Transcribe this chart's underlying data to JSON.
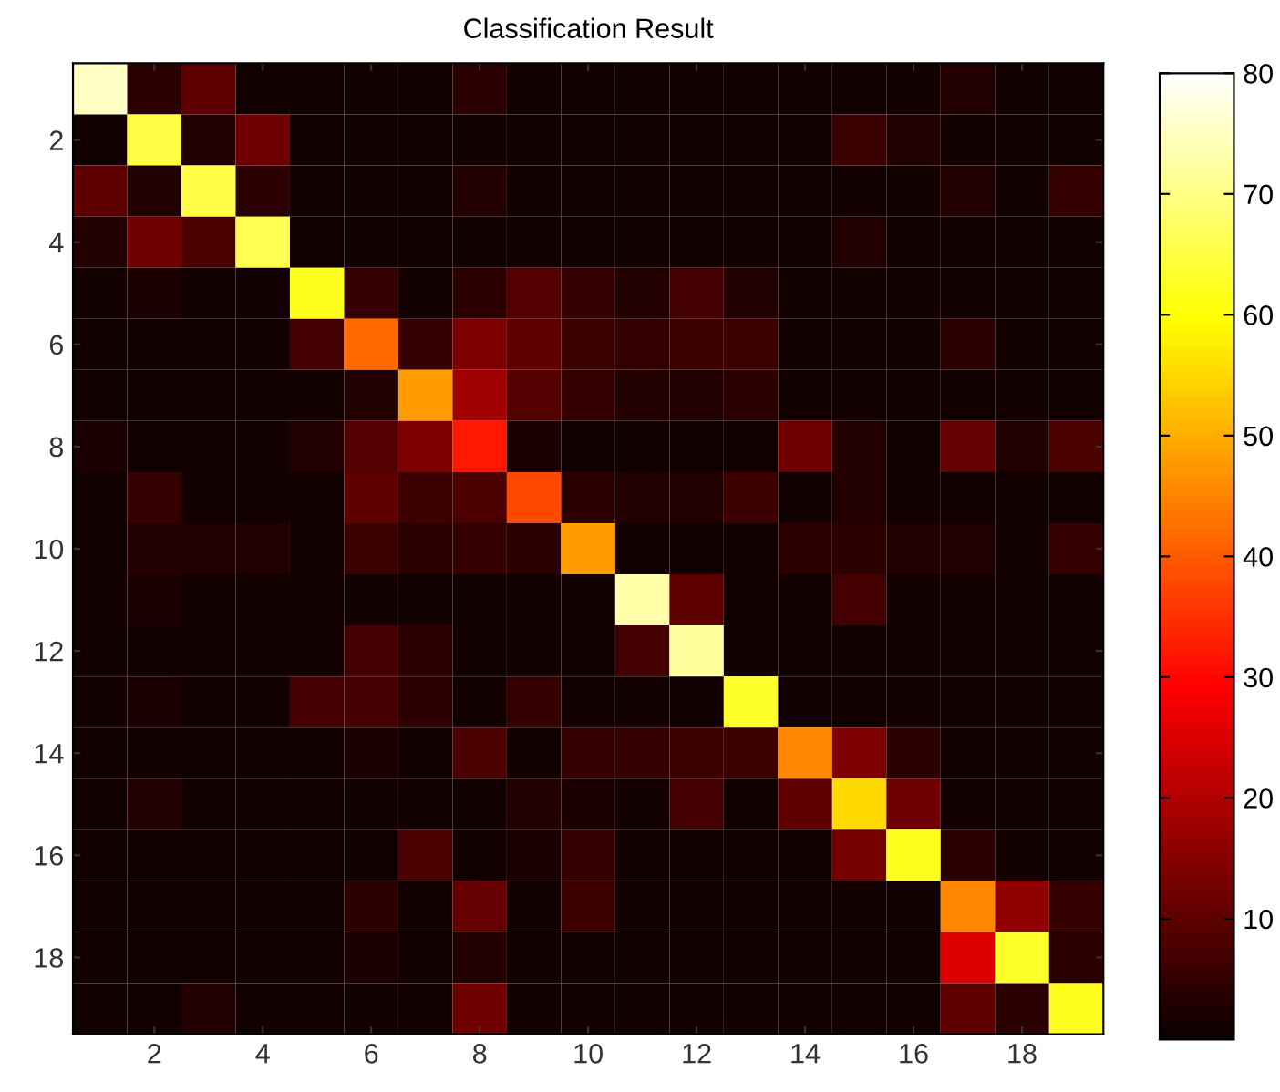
{
  "chart_data": {
    "type": "heatmap",
    "title": "Classification Result",
    "categories": [
      null,
      "2",
      null,
      "4",
      null,
      "6",
      null,
      "8",
      null,
      "10",
      null,
      "12",
      null,
      "14",
      null,
      "16",
      null,
      "18",
      null
    ],
    "y_categories": [
      null,
      "2",
      null,
      "4",
      null,
      "6",
      null,
      "8",
      null,
      "10",
      null,
      "12",
      null,
      "14",
      null,
      "16",
      null,
      "18",
      null
    ],
    "cells": [
      [
        75,
        4,
        10,
        1,
        1,
        1,
        1,
        4,
        1,
        1,
        1,
        1,
        1,
        1,
        1,
        1,
        3,
        1,
        1
      ],
      [
        1,
        65,
        3,
        12,
        1,
        1,
        1,
        1,
        1,
        1,
        1,
        1,
        1,
        1,
        6,
        3,
        1,
        1,
        1
      ],
      [
        10,
        3,
        65,
        4,
        1,
        1,
        1,
        3,
        1,
        1,
        1,
        1,
        1,
        1,
        1,
        1,
        3,
        1,
        5
      ],
      [
        3,
        12,
        8,
        66,
        1,
        1,
        1,
        1,
        1,
        1,
        1,
        1,
        1,
        1,
        3,
        1,
        1,
        1,
        1
      ],
      [
        1,
        2,
        1,
        1,
        62,
        5,
        1,
        4,
        9,
        5,
        3,
        7,
        3,
        1,
        1,
        1,
        1,
        1,
        1
      ],
      [
        1,
        1,
        1,
        1,
        7,
        42,
        5,
        14,
        10,
        6,
        5,
        6,
        6,
        1,
        1,
        1,
        4,
        1,
        1
      ],
      [
        1,
        1,
        1,
        1,
        1,
        3,
        48,
        18,
        9,
        5,
        3,
        3,
        4,
        1,
        1,
        1,
        1,
        1,
        1
      ],
      [
        2,
        1,
        1,
        1,
        3,
        9,
        14,
        32,
        2,
        1,
        1,
        1,
        1,
        12,
        3,
        1,
        11,
        3,
        8
      ],
      [
        1,
        5,
        1,
        1,
        1,
        10,
        6,
        8,
        38,
        4,
        3,
        3,
        6,
        1,
        3,
        1,
        1,
        1,
        1
      ],
      [
        1,
        3,
        3,
        3,
        1,
        6,
        4,
        5,
        4,
        48,
        1,
        1,
        1,
        4,
        4,
        3,
        3,
        1,
        5
      ],
      [
        1,
        2,
        1,
        1,
        1,
        1,
        1,
        1,
        1,
        1,
        73,
        10,
        1,
        1,
        7,
        1,
        1,
        1,
        1
      ],
      [
        1,
        1,
        1,
        1,
        1,
        7,
        4,
        1,
        1,
        1,
        7,
        72,
        1,
        1,
        1,
        1,
        1,
        1,
        1
      ],
      [
        1,
        2,
        1,
        1,
        7,
        7,
        4,
        1,
        5,
        1,
        1,
        1,
        63,
        1,
        1,
        1,
        1,
        1,
        1
      ],
      [
        1,
        1,
        1,
        1,
        1,
        2,
        1,
        8,
        1,
        5,
        5,
        6,
        6,
        45,
        14,
        4,
        1,
        1,
        1
      ],
      [
        1,
        3,
        1,
        1,
        1,
        1,
        1,
        1,
        3,
        2,
        1,
        7,
        1,
        10,
        55,
        12,
        1,
        1,
        1
      ],
      [
        1,
        1,
        1,
        1,
        1,
        1,
        8,
        1,
        2,
        5,
        1,
        1,
        1,
        1,
        13,
        62,
        4,
        1,
        1
      ],
      [
        1,
        1,
        1,
        1,
        1,
        4,
        1,
        11,
        1,
        6,
        1,
        1,
        1,
        1,
        1,
        1,
        45,
        16,
        5
      ],
      [
        1,
        1,
        1,
        1,
        1,
        2,
        1,
        3,
        1,
        1,
        1,
        1,
        1,
        1,
        1,
        1,
        25,
        63,
        4
      ],
      [
        1,
        1,
        3,
        1,
        1,
        1,
        1,
        12,
        1,
        1,
        1,
        1,
        1,
        1,
        1,
        1,
        10,
        4,
        62
      ]
    ],
    "clim": [
      0,
      80
    ],
    "cticks": [
      10,
      20,
      30,
      40,
      50,
      60,
      70,
      80
    ],
    "grid": false
  }
}
